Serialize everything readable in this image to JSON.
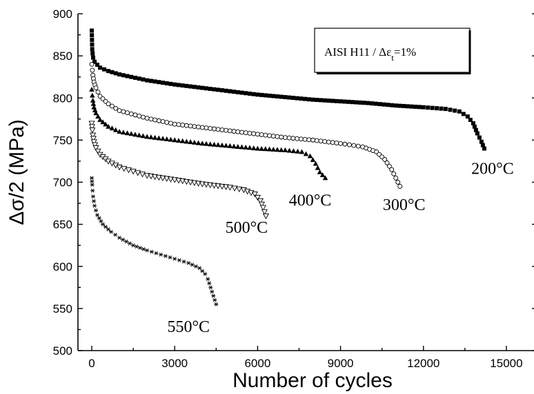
{
  "chart_data": {
    "type": "scatter",
    "xlabel": "Number of cycles",
    "ylabel": "Δσ/2 (MPa)",
    "xlim": [
      -500,
      16000
    ],
    "ylim": [
      500,
      900
    ],
    "xticks": [
      0,
      3000,
      6000,
      9000,
      12000,
      15000
    ],
    "yticks": [
      500,
      550,
      600,
      650,
      700,
      750,
      800,
      850,
      900
    ],
    "legend": {
      "placement": "top-right",
      "text_main": "AISI H11 / Δε",
      "text_sub": "t",
      "text_tail": "=1%"
    },
    "series": [
      {
        "name": "200°C",
        "marker": "square-filled",
        "points": [
          [
            0,
            880
          ],
          [
            15,
            858
          ],
          [
            30,
            853
          ],
          [
            50,
            848
          ],
          [
            100,
            843
          ],
          [
            300,
            836
          ],
          [
            600,
            832
          ],
          [
            1000,
            828
          ],
          [
            2000,
            821
          ],
          [
            3000,
            816
          ],
          [
            4000,
            812
          ],
          [
            5000,
            808
          ],
          [
            6000,
            804
          ],
          [
            7000,
            801
          ],
          [
            8000,
            798
          ],
          [
            9000,
            796
          ],
          [
            10000,
            794
          ],
          [
            11000,
            791
          ],
          [
            12000,
            789
          ],
          [
            12800,
            787
          ],
          [
            13300,
            784
          ],
          [
            13600,
            778
          ],
          [
            13800,
            770
          ],
          [
            13950,
            758
          ],
          [
            14100,
            748
          ],
          [
            14200,
            740
          ]
        ]
      },
      {
        "name": "300°C",
        "marker": "circle-open",
        "points": [
          [
            0,
            840
          ],
          [
            20,
            833
          ],
          [
            40,
            827
          ],
          [
            80,
            819
          ],
          [
            150,
            812
          ],
          [
            300,
            802
          ],
          [
            600,
            793
          ],
          [
            1000,
            785
          ],
          [
            2000,
            776
          ],
          [
            3000,
            769
          ],
          [
            4000,
            765
          ],
          [
            5000,
            761
          ],
          [
            6000,
            757
          ],
          [
            7000,
            753
          ],
          [
            8000,
            750
          ],
          [
            9000,
            746
          ],
          [
            9800,
            742
          ],
          [
            10300,
            736
          ],
          [
            10600,
            727
          ],
          [
            10850,
            715
          ],
          [
            11000,
            705
          ],
          [
            11150,
            695
          ]
        ]
      },
      {
        "name": "400°C",
        "marker": "triangle-up-filled",
        "points": [
          [
            0,
            810
          ],
          [
            20,
            803
          ],
          [
            40,
            797
          ],
          [
            80,
            789
          ],
          [
            150,
            782
          ],
          [
            300,
            774
          ],
          [
            600,
            766
          ],
          [
            1000,
            760
          ],
          [
            2000,
            754
          ],
          [
            3000,
            750
          ],
          [
            4000,
            746
          ],
          [
            5000,
            743
          ],
          [
            6000,
            740
          ],
          [
            7000,
            738
          ],
          [
            7600,
            736
          ],
          [
            7900,
            731
          ],
          [
            8100,
            722
          ],
          [
            8250,
            712
          ],
          [
            8450,
            705
          ]
        ]
      },
      {
        "name": "500°C",
        "marker": "triangle-down-open",
        "points": [
          [
            0,
            770
          ],
          [
            20,
            762
          ],
          [
            40,
            756
          ],
          [
            80,
            748
          ],
          [
            150,
            741
          ],
          [
            300,
            733
          ],
          [
            600,
            725
          ],
          [
            1000,
            718
          ],
          [
            1500,
            713
          ],
          [
            2000,
            708
          ],
          [
            3000,
            703
          ],
          [
            4000,
            698
          ],
          [
            5000,
            694
          ],
          [
            5500,
            691
          ],
          [
            5900,
            686
          ],
          [
            6100,
            678
          ],
          [
            6200,
            670
          ],
          [
            6300,
            660
          ]
        ]
      },
      {
        "name": "550°C",
        "marker": "asterisk",
        "points": [
          [
            0,
            705
          ],
          [
            15,
            697
          ],
          [
            30,
            690
          ],
          [
            50,
            683
          ],
          [
            100,
            672
          ],
          [
            200,
            661
          ],
          [
            400,
            650
          ],
          [
            700,
            641
          ],
          [
            1000,
            634
          ],
          [
            1500,
            625
          ],
          [
            2000,
            619
          ],
          [
            2500,
            614
          ],
          [
            3000,
            609
          ],
          [
            3500,
            604
          ],
          [
            3900,
            598
          ],
          [
            4100,
            591
          ],
          [
            4200,
            585
          ],
          [
            4300,
            575
          ],
          [
            4400,
            565
          ],
          [
            4500,
            555
          ]
        ]
      }
    ],
    "labels": [
      {
        "text": "200°C",
        "x": 14500,
        "y": 710
      },
      {
        "text": "300°C",
        "x": 11300,
        "y": 667
      },
      {
        "text": "400°C",
        "x": 7900,
        "y": 672
      },
      {
        "text": "500°C",
        "x": 5600,
        "y": 640
      },
      {
        "text": "550°C",
        "x": 3500,
        "y": 522
      }
    ]
  }
}
